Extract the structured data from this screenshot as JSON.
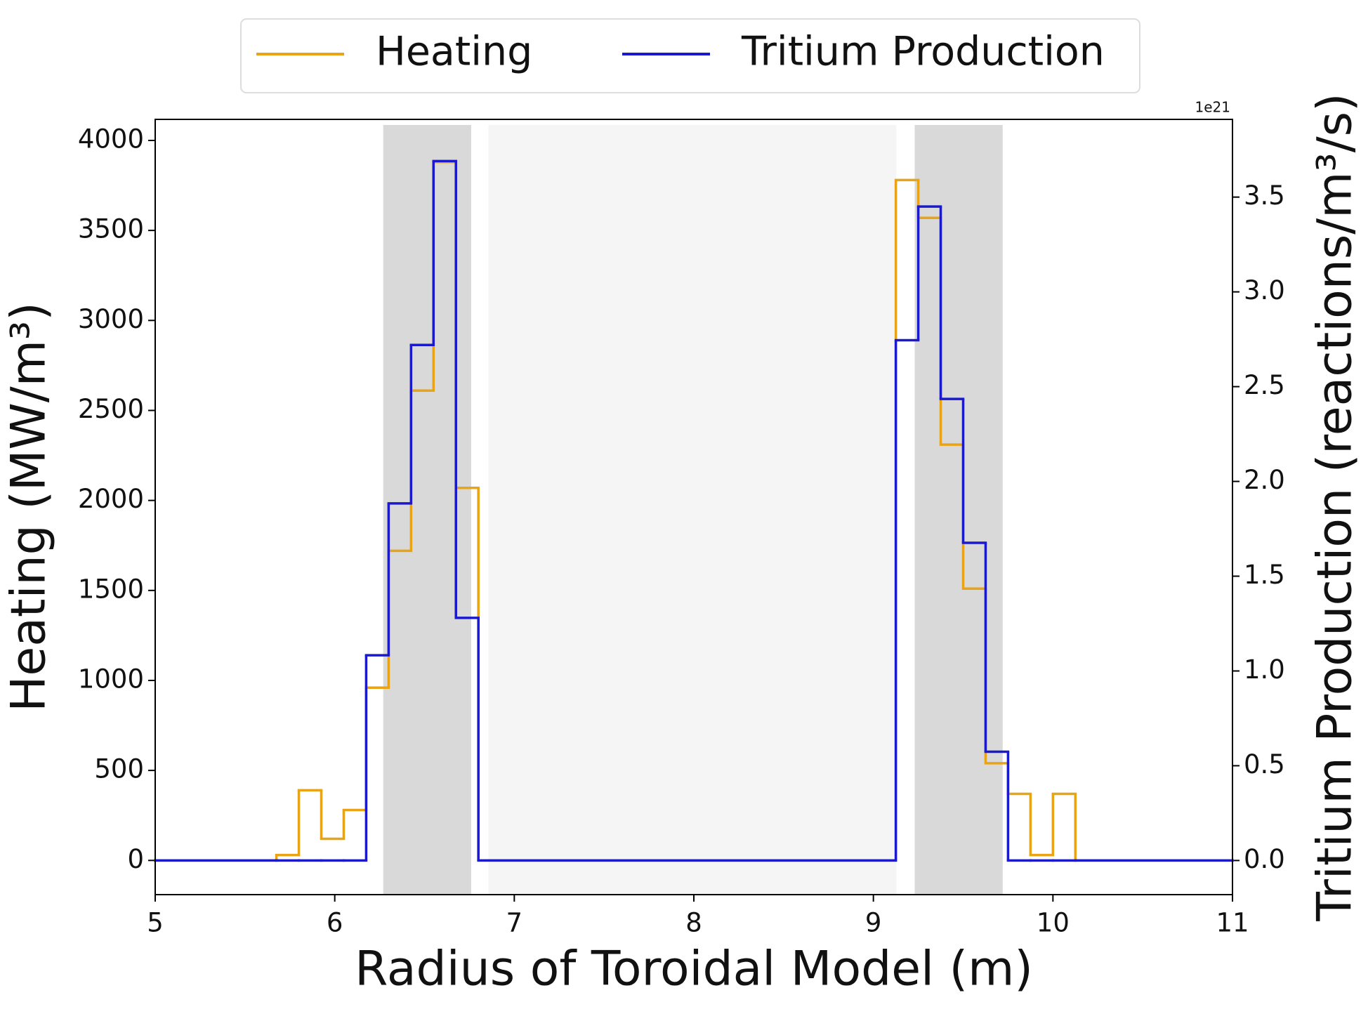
{
  "chart_data": {
    "type": "histogram",
    "xlabel": "Radius of Toroidal Model (m)",
    "ylabel": "Heating (MW/m³)",
    "y2label": "Tritium Production (reactions/m³/s)",
    "y2offset": "1e21",
    "bins": [
      5.0,
      5.675,
      5.8,
      5.925,
      6.05,
      6.175,
      6.3,
      6.425,
      6.55,
      6.675,
      6.8,
      9.125,
      9.25,
      9.375,
      9.5,
      9.625,
      9.75,
      9.875,
      10.0,
      10.125,
      11.0
    ],
    "series": [
      {
        "name": "Heating",
        "color": "#e8a317",
        "axis": "y",
        "values": [
          0,
          30,
          390,
          120,
          280,
          960,
          1720,
          2610,
          3880,
          2070,
          0,
          3780,
          3570,
          2310,
          1510,
          540,
          370,
          30,
          370,
          0
        ]
      },
      {
        "name": "Tritium Production",
        "color": "#1a1acc",
        "axis": "y2",
        "values": [
          0,
          0,
          0,
          0,
          0,
          1.083,
          1.884,
          2.72,
          3.69,
          1.28,
          0,
          2.745,
          3.45,
          2.435,
          1.676,
          0.574,
          0,
          0,
          0,
          0
        ]
      }
    ],
    "spans": [
      {
        "range": [
          6.27,
          6.76
        ],
        "color": "#d9d9d9"
      },
      {
        "range": [
          6.856,
          9.128
        ],
        "color": "#f5f5f5"
      },
      {
        "range": [
          9.23,
          9.72
        ],
        "color": "#d9d9d9"
      }
    ],
    "xlim": [
      5,
      11
    ],
    "xticks": [
      5,
      6,
      7,
      8,
      9,
      10,
      11
    ],
    "ylim": [
      -190,
      4117
    ],
    "yticks": [
      0,
      500,
      1000,
      1500,
      2000,
      2500,
      3000,
      3500,
      4000
    ],
    "y2lim": [
      -0.18,
      3.91
    ],
    "y2ticks": [
      {
        "value": 0,
        "label": "0.0"
      },
      {
        "value": 0.5,
        "label": "0.5"
      },
      {
        "value": 1,
        "label": "1.0"
      },
      {
        "value": 1.5,
        "label": "1.5"
      },
      {
        "value": 2,
        "label": "2.0"
      },
      {
        "value": 2.5,
        "label": "2.5"
      },
      {
        "value": 3,
        "label": "3.0"
      },
      {
        "value": 3.5,
        "label": "3.5"
      }
    ],
    "legend": "top"
  }
}
